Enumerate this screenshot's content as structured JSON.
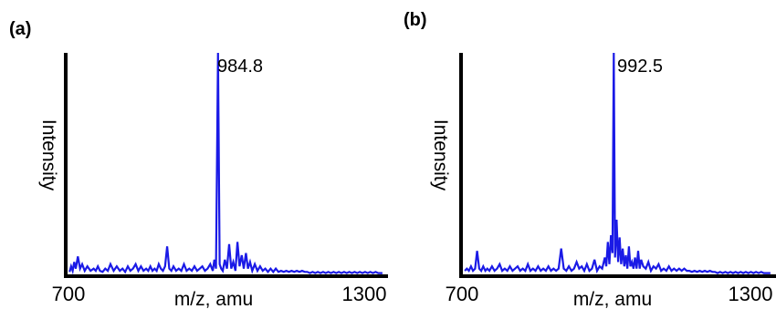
{
  "chart_data": [
    {
      "type": "line",
      "panel_label": "(a)",
      "xlabel": "m/z, amu",
      "ylabel": "Intensity",
      "xlim": [
        700,
        1300
      ],
      "ylim": [
        0,
        100
      ],
      "x_tick_labels": [
        "700",
        "1300"
      ],
      "peak_label": "984.8",
      "color": "#1a1ae6",
      "series": [
        {
          "x": [
            702,
            705,
            708,
            711,
            714,
            718,
            722,
            726,
            731,
            736,
            742,
            748,
            752,
            756,
            760,
            765,
            770,
            775,
            780,
            786,
            792,
            798,
            803,
            808,
            813,
            818,
            823,
            828,
            833,
            838,
            843,
            848,
            852,
            856,
            860,
            864,
            868,
            872,
            876,
            880,
            884,
            888,
            892,
            896,
            900,
            905,
            910,
            915,
            920,
            925,
            930,
            935,
            940,
            945,
            950,
            955,
            960,
            965,
            970,
            975,
            978,
            981,
            984.8,
            988,
            991,
            994,
            998,
            1002,
            1006,
            1010,
            1014,
            1018,
            1022,
            1026,
            1030,
            1034,
            1038,
            1042,
            1046,
            1050,
            1055,
            1060,
            1065,
            1070,
            1075,
            1080,
            1085,
            1090,
            1095,
            1100,
            1105,
            1110,
            1115,
            1120,
            1125,
            1130,
            1135,
            1140,
            1145,
            1150,
            1155,
            1160,
            1165,
            1170,
            1175,
            1180,
            1185,
            1190,
            1195,
            1200,
            1205,
            1210,
            1215,
            1220,
            1225,
            1230,
            1235,
            1240,
            1245,
            1250,
            1255,
            1260,
            1265,
            1270,
            1275,
            1280,
            1285,
            1290,
            1295,
            1298
          ],
          "y": [
            1.5,
            4,
            2,
            6,
            3,
            8.5,
            3,
            5,
            2,
            4,
            2,
            3,
            2,
            4,
            2,
            1.5,
            3,
            2,
            5,
            2,
            4,
            2,
            3,
            1.5,
            4,
            2,
            3,
            5,
            2,
            4,
            2,
            3,
            2,
            4,
            2,
            3,
            2,
            5,
            3,
            2,
            4,
            13,
            3,
            2,
            4,
            2,
            3,
            2,
            5,
            2,
            3,
            2,
            4,
            2,
            3,
            4,
            2,
            3,
            5,
            2,
            7,
            3,
            100,
            5,
            3,
            2,
            7,
            3,
            14,
            3,
            6,
            2,
            15,
            4,
            9,
            3,
            10,
            3,
            6,
            2,
            5,
            2,
            4,
            2,
            3,
            1.5,
            3,
            1.5,
            3,
            1.5,
            2,
            1.5,
            2,
            1.5,
            2,
            1.5,
            2,
            1.5,
            2,
            1.5,
            1.5,
            1,
            1.5,
            1,
            1.5,
            1,
            1.5,
            1,
            1.5,
            1,
            1.5,
            1,
            1.5,
            1,
            1.5,
            1,
            1.5,
            1,
            1.5,
            1,
            1.5,
            1,
            1.5,
            1,
            1.5,
            1,
            1.5,
            1,
            1,
            1
          ]
        }
      ]
    },
    {
      "type": "line",
      "panel_label": "(b)",
      "xlabel": "m/z, amu",
      "ylabel": "Intensity",
      "xlim": [
        700,
        1300
      ],
      "ylim": [
        0,
        100
      ],
      "x_tick_labels": [
        "700",
        "1300"
      ],
      "peak_label": "992.5",
      "color": "#1a1ae6",
      "series": [
        {
          "x": [
            702,
            706,
            710,
            714,
            718,
            722,
            726,
            730,
            734,
            738,
            742,
            746,
            750,
            755,
            760,
            765,
            770,
            775,
            780,
            785,
            790,
            795,
            800,
            805,
            810,
            815,
            820,
            825,
            830,
            835,
            840,
            845,
            850,
            855,
            860,
            865,
            870,
            875,
            880,
            885,
            890,
            895,
            900,
            905,
            910,
            915,
            920,
            925,
            930,
            935,
            940,
            945,
            950,
            955,
            960,
            965,
            970,
            975,
            978,
            981,
            984,
            987,
            990,
            992.5,
            995,
            998,
            1001,
            1004,
            1007,
            1010,
            1013,
            1016,
            1019,
            1022,
            1025,
            1028,
            1031,
            1034,
            1037,
            1040,
            1043,
            1046,
            1050,
            1055,
            1060,
            1065,
            1070,
            1075,
            1080,
            1085,
            1090,
            1095,
            1100,
            1105,
            1110,
            1115,
            1120,
            1125,
            1130,
            1135,
            1140,
            1145,
            1150,
            1155,
            1160,
            1165,
            1170,
            1175,
            1180,
            1185,
            1190,
            1195,
            1200,
            1205,
            1210,
            1215,
            1220,
            1225,
            1230,
            1235,
            1240,
            1245,
            1250,
            1255,
            1260,
            1265,
            1270,
            1275,
            1280,
            1285,
            1290,
            1295,
            1298
          ],
          "y": [
            2,
            3,
            2,
            4,
            2,
            3,
            11,
            3,
            2,
            4,
            2,
            3,
            2,
            4,
            2,
            3,
            5,
            2,
            3,
            2,
            4,
            2,
            3,
            4,
            2,
            3,
            2,
            5,
            2,
            3,
            2,
            4,
            2,
            3,
            2,
            4,
            2,
            3,
            2,
            3,
            12,
            3,
            2,
            4,
            2,
            3,
            6,
            3,
            4,
            2,
            5,
            2,
            3,
            7,
            2,
            4,
            3,
            8,
            4,
            15,
            5,
            18,
            10,
            100,
            8,
            25,
            6,
            17,
            5,
            12,
            4,
            9,
            3,
            13,
            4,
            6,
            3,
            8,
            3,
            11,
            3,
            7,
            4,
            3,
            6,
            2,
            4,
            3,
            5,
            2,
            3,
            2,
            4,
            2,
            3,
            2,
            3,
            2,
            3,
            2,
            2,
            1.5,
            2,
            1.5,
            2,
            1.5,
            2,
            1.5,
            2,
            1.5,
            1.5,
            1,
            1.5,
            1,
            1.5,
            1,
            1.5,
            1,
            1.5,
            1,
            1.5,
            1,
            1.5,
            1,
            1.5,
            1,
            1.5,
            1,
            1.5,
            1,
            1,
            1,
            1
          ]
        }
      ]
    }
  ]
}
